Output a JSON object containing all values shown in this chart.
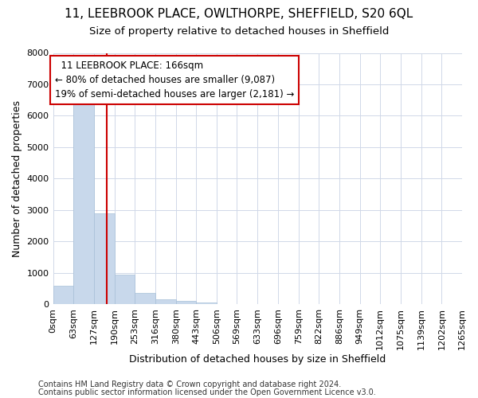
{
  "title_line1": "11, LEEBROOK PLACE, OWLTHORPE, SHEFFIELD, S20 6QL",
  "title_line2": "Size of property relative to detached houses in Sheffield",
  "xlabel": "Distribution of detached houses by size in Sheffield",
  "ylabel": "Number of detached properties",
  "bar_color": "#c8d8eb",
  "bar_edge_color": "#a8c0d8",
  "vline_color": "#cc0000",
  "vline_value": 166,
  "annotation_title": "11 LEEBROOK PLACE: 166sqm",
  "annotation_line2": "← 80% of detached houses are smaller (9,087)",
  "annotation_line3": "19% of semi-detached houses are larger (2,181) →",
  "bin_edges": [
    0,
    63,
    127,
    190,
    253,
    316,
    380,
    443,
    506,
    569,
    633,
    696,
    759,
    822,
    886,
    949,
    1012,
    1075,
    1139,
    1202,
    1265
  ],
  "bin_heights": [
    580,
    6380,
    2900,
    950,
    360,
    155,
    95,
    60,
    0,
    0,
    0,
    0,
    0,
    0,
    0,
    0,
    0,
    0,
    0,
    0
  ],
  "ylim": [
    0,
    8000
  ],
  "yticks": [
    0,
    1000,
    2000,
    3000,
    4000,
    5000,
    6000,
    7000,
    8000
  ],
  "background_color": "#ffffff",
  "plot_background": "#ffffff",
  "footer_line1": "Contains HM Land Registry data © Crown copyright and database right 2024.",
  "footer_line2": "Contains public sector information licensed under the Open Government Licence v3.0.",
  "grid_color": "#d0d8e8",
  "title_fontsize": 11,
  "subtitle_fontsize": 9.5,
  "axis_label_fontsize": 9,
  "tick_fontsize": 8,
  "annotation_fontsize": 8.5,
  "footer_fontsize": 7
}
